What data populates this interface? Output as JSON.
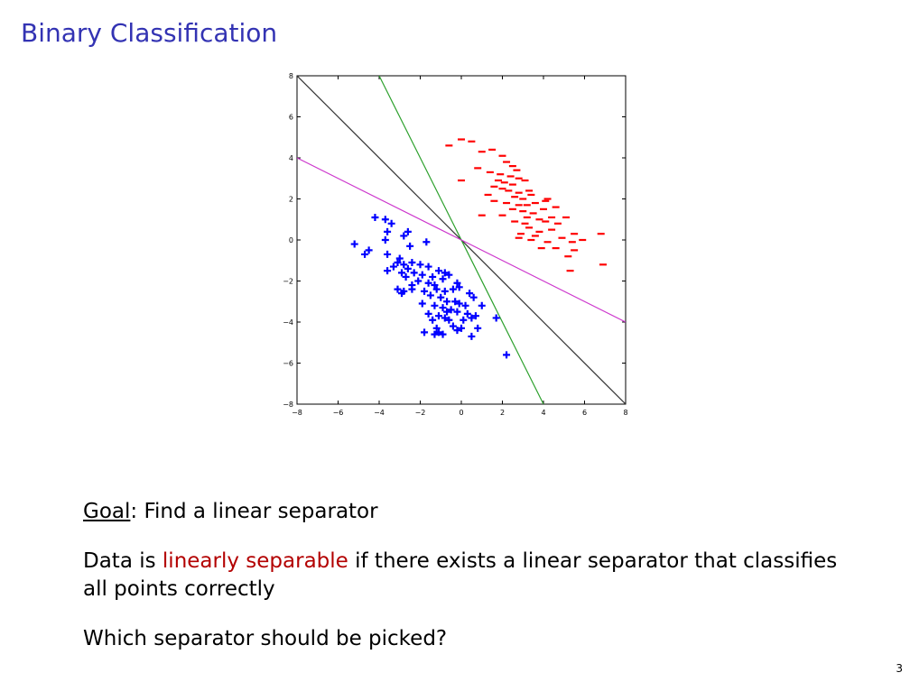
{
  "slide": {
    "title": "Binary Classification",
    "goal_label": "Goal",
    "goal_text": ": Find a linear separator",
    "def_prefix": "Data is ",
    "def_highlight": "linearly separable",
    "def_suffix": " if there exists a linear separator that classifies all points correctly",
    "question": "Which separator should be picked?",
    "page_number": "3"
  },
  "colors": {
    "title": "#3333b3",
    "highlight": "#b30000",
    "positive_marker": "#0000ff",
    "negative_marker": "#ff0000",
    "separator_black": "#333333",
    "separator_green": "#2ca02c",
    "separator_magenta": "#cc33cc"
  },
  "chart_data": {
    "type": "scatter",
    "xlim": [
      -8,
      8
    ],
    "ylim": [
      -8,
      8
    ],
    "xticks": [
      -8,
      -6,
      -4,
      -2,
      0,
      2,
      4,
      6,
      8
    ],
    "yticks": [
      -8,
      -6,
      -4,
      -2,
      0,
      2,
      4,
      6,
      8
    ],
    "xtick_labels": [
      "−8",
      "−6",
      "−4",
      "−2",
      "0",
      "2",
      "4",
      "6",
      "8"
    ],
    "ytick_labels": [
      "−8",
      "−6",
      "−4",
      "−2",
      "0",
      "2",
      "4",
      "6",
      "8"
    ],
    "grid": false,
    "lines": [
      {
        "color": "#333333",
        "points": [
          [
            -8,
            8
          ],
          [
            8,
            -8
          ]
        ]
      },
      {
        "color": "#2ca02c",
        "points": [
          [
            -4,
            8
          ],
          [
            4,
            -8
          ]
        ]
      },
      {
        "color": "#cc33cc",
        "points": [
          [
            -8,
            4
          ],
          [
            8,
            -4
          ]
        ]
      }
    ],
    "series": [
      {
        "marker": "+",
        "color": "#0000ff",
        "points": [
          [
            -4.2,
            1.1
          ],
          [
            -3.7,
            1.0
          ],
          [
            -3.4,
            0.8
          ],
          [
            -3.6,
            0.4
          ],
          [
            -2.6,
            0.4
          ],
          [
            -2.8,
            0.2
          ],
          [
            -3.7,
            0.0
          ],
          [
            -1.7,
            -0.1
          ],
          [
            -2.5,
            -0.3
          ],
          [
            -5.2,
            -0.2
          ],
          [
            -4.5,
            -0.5
          ],
          [
            -4.7,
            -0.7
          ],
          [
            -3.6,
            -0.7
          ],
          [
            -3.0,
            -0.9
          ],
          [
            -3.1,
            -1.1
          ],
          [
            -2.8,
            -1.2
          ],
          [
            -2.4,
            -1.1
          ],
          [
            -2.0,
            -1.2
          ],
          [
            -3.3,
            -1.3
          ],
          [
            -2.6,
            -1.4
          ],
          [
            -1.6,
            -1.3
          ],
          [
            -1.1,
            -1.5
          ],
          [
            -3.6,
            -1.5
          ],
          [
            -2.9,
            -1.6
          ],
          [
            -2.3,
            -1.6
          ],
          [
            -1.9,
            -1.7
          ],
          [
            -0.8,
            -1.6
          ],
          [
            -0.6,
            -1.7
          ],
          [
            -2.7,
            -1.8
          ],
          [
            -1.4,
            -1.8
          ],
          [
            -0.9,
            -1.9
          ],
          [
            -2.1,
            -2.0
          ],
          [
            -1.6,
            -2.1
          ],
          [
            -2.4,
            -2.2
          ],
          [
            -1.3,
            -2.2
          ],
          [
            -0.2,
            -2.1
          ],
          [
            -0.1,
            -2.3
          ],
          [
            -3.1,
            -2.4
          ],
          [
            -2.8,
            -2.5
          ],
          [
            -2.4,
            -2.4
          ],
          [
            -1.8,
            -2.5
          ],
          [
            -1.2,
            -2.4
          ],
          [
            -0.8,
            -2.5
          ],
          [
            -0.4,
            -2.4
          ],
          [
            0.4,
            -2.6
          ],
          [
            0.6,
            -2.8
          ],
          [
            -2.9,
            -2.6
          ],
          [
            -1.5,
            -2.7
          ],
          [
            -1.0,
            -2.8
          ],
          [
            -0.7,
            -3.0
          ],
          [
            -0.1,
            -3.1
          ],
          [
            -1.9,
            -3.1
          ],
          [
            -1.3,
            -3.2
          ],
          [
            -0.9,
            -3.3
          ],
          [
            0.2,
            -3.2
          ],
          [
            1.0,
            -3.2
          ],
          [
            -0.5,
            -3.4
          ],
          [
            -0.2,
            -3.5
          ],
          [
            0.3,
            -3.6
          ],
          [
            0.7,
            -3.7
          ],
          [
            -1.6,
            -3.6
          ],
          [
            -1.1,
            -3.7
          ],
          [
            -0.8,
            -3.8
          ],
          [
            -0.6,
            -3.9
          ],
          [
            0.1,
            -3.9
          ],
          [
            0.5,
            -3.8
          ],
          [
            -1.4,
            -3.9
          ],
          [
            -0.4,
            -4.2
          ],
          [
            0.0,
            -4.3
          ],
          [
            0.8,
            -4.3
          ],
          [
            -0.2,
            -4.4
          ],
          [
            -1.8,
            -4.5
          ],
          [
            -1.3,
            -4.6
          ],
          [
            -1.1,
            -4.5
          ],
          [
            -0.9,
            -4.6
          ],
          [
            -1.2,
            -4.3
          ],
          [
            0.5,
            -4.7
          ],
          [
            1.7,
            -3.8
          ],
          [
            2.2,
            -5.6
          ],
          [
            -0.7,
            -3.5
          ],
          [
            -0.3,
            -3.0
          ]
        ]
      },
      {
        "marker": "_",
        "color": "#ff0000",
        "points": [
          [
            -0.6,
            4.6
          ],
          [
            0.0,
            4.9
          ],
          [
            0.5,
            4.8
          ],
          [
            1.0,
            4.3
          ],
          [
            1.5,
            4.4
          ],
          [
            2.0,
            4.1
          ],
          [
            2.2,
            3.8
          ],
          [
            2.5,
            3.6
          ],
          [
            2.7,
            3.4
          ],
          [
            0.8,
            3.5
          ],
          [
            1.4,
            3.3
          ],
          [
            1.9,
            3.2
          ],
          [
            2.4,
            3.1
          ],
          [
            2.8,
            3.0
          ],
          [
            0.0,
            2.9
          ],
          [
            1.8,
            2.9
          ],
          [
            2.1,
            2.8
          ],
          [
            2.5,
            2.7
          ],
          [
            3.1,
            2.9
          ],
          [
            1.6,
            2.6
          ],
          [
            2.0,
            2.5
          ],
          [
            2.3,
            2.4
          ],
          [
            2.8,
            2.3
          ],
          [
            3.3,
            2.4
          ],
          [
            1.3,
            2.2
          ],
          [
            2.6,
            2.1
          ],
          [
            3.0,
            2.0
          ],
          [
            3.4,
            2.2
          ],
          [
            4.2,
            2.0
          ],
          [
            1.6,
            1.9
          ],
          [
            2.2,
            1.8
          ],
          [
            2.8,
            1.7
          ],
          [
            3.2,
            1.7
          ],
          [
            3.6,
            1.8
          ],
          [
            4.1,
            1.9
          ],
          [
            2.5,
            1.5
          ],
          [
            3.0,
            1.4
          ],
          [
            3.5,
            1.3
          ],
          [
            4.0,
            1.5
          ],
          [
            4.6,
            1.6
          ],
          [
            1.0,
            1.2
          ],
          [
            2.0,
            1.2
          ],
          [
            3.2,
            1.1
          ],
          [
            3.8,
            1.0
          ],
          [
            4.4,
            1.1
          ],
          [
            5.1,
            1.1
          ],
          [
            2.6,
            0.9
          ],
          [
            3.1,
            0.8
          ],
          [
            4.1,
            0.9
          ],
          [
            4.7,
            0.8
          ],
          [
            3.3,
            0.6
          ],
          [
            3.8,
            0.4
          ],
          [
            4.4,
            0.5
          ],
          [
            5.5,
            0.3
          ],
          [
            6.8,
            0.3
          ],
          [
            2.9,
            0.3
          ],
          [
            3.6,
            0.2
          ],
          [
            4.9,
            0.1
          ],
          [
            5.4,
            -0.1
          ],
          [
            4.2,
            -0.1
          ],
          [
            2.8,
            0.1
          ],
          [
            3.9,
            -0.4
          ],
          [
            4.6,
            -0.4
          ],
          [
            5.5,
            -0.5
          ],
          [
            5.2,
            -0.8
          ],
          [
            6.9,
            -1.2
          ],
          [
            5.3,
            -1.5
          ],
          [
            3.4,
            0.0
          ],
          [
            5.9,
            0.0
          ]
        ]
      }
    ]
  }
}
